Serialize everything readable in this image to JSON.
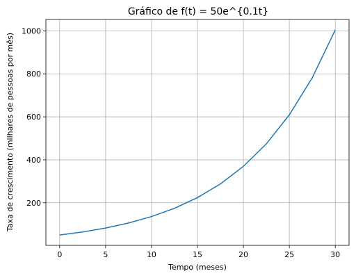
{
  "chart_data": {
    "type": "line",
    "title": "Gráfico de f(t) = 50e^{0.1t}",
    "xlabel": "Tempo (meses)",
    "ylabel": "Taxa de crescimento (milhares de pessoas por mês)",
    "xlim": [
      -1.5,
      31.5
    ],
    "ylim": [
      2,
      1053
    ],
    "x_ticks": [
      0,
      5,
      10,
      15,
      20,
      25,
      30
    ],
    "y_ticks": [
      200,
      400,
      600,
      800,
      1000
    ],
    "grid": true,
    "series": [
      {
        "color": "#1f77b4",
        "x": [
          0,
          2.5,
          5,
          7.5,
          10,
          12.5,
          15,
          17.5,
          20,
          22.5,
          25,
          27.5,
          30
        ],
        "y": [
          50,
          64.2,
          82.4,
          105.9,
          135.9,
          174.5,
          224.1,
          287.7,
          369.5,
          474.4,
          609.1,
          782.2,
          1004.3
        ]
      }
    ]
  }
}
